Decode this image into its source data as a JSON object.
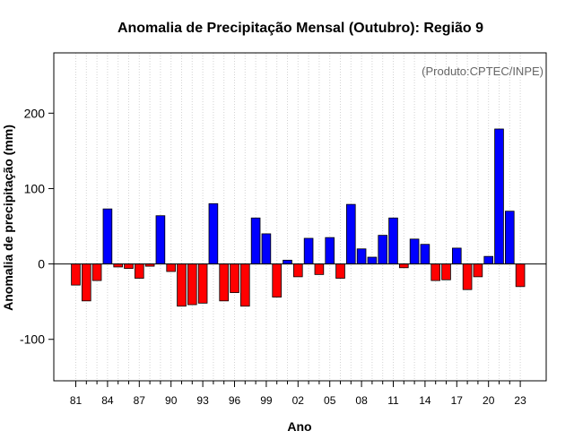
{
  "chart_data": {
    "type": "bar",
    "title": "Anomalia de Precipitação Mensal (Outubro): Região 9",
    "xlabel": "Ano",
    "ylabel": "Anomalia de precipitação (mm)",
    "annotation": "(Produto:CPTEC/INPE)",
    "ylim": [
      -155,
      280
    ],
    "yticks": [
      -100,
      0,
      100,
      200
    ],
    "grid": "vertical dotted",
    "positive_color": "#0000ff",
    "negative_color": "#ff0000",
    "xtick_labels": [
      "81",
      "84",
      "87",
      "90",
      "93",
      "96",
      "99",
      "02",
      "05",
      "08",
      "11",
      "14",
      "17",
      "20",
      "23"
    ],
    "categories": [
      "1981",
      "1982",
      "1983",
      "1984",
      "1985",
      "1986",
      "1987",
      "1988",
      "1989",
      "1990",
      "1991",
      "1992",
      "1993",
      "1994",
      "1995",
      "1996",
      "1997",
      "1998",
      "1999",
      "2000",
      "2001",
      "2002",
      "2003",
      "2004",
      "2005",
      "2006",
      "2007",
      "2008",
      "2009",
      "2010",
      "2011",
      "2012",
      "2013",
      "2014",
      "2015",
      "2016",
      "2017",
      "2018",
      "2019",
      "2020",
      "2021",
      "2022",
      "2023"
    ],
    "values": [
      -28,
      -49,
      -22,
      73,
      -4,
      -6,
      -19,
      -3,
      64,
      -10,
      -56,
      -54,
      -52,
      80,
      -49,
      -38,
      -56,
      61,
      40,
      -44,
      5,
      -17,
      34,
      -14,
      35,
      -19,
      79,
      20,
      9,
      38,
      61,
      -5,
      33,
      26,
      -22,
      -21,
      21,
      -34,
      -17,
      10,
      179,
      70,
      -30
    ]
  }
}
